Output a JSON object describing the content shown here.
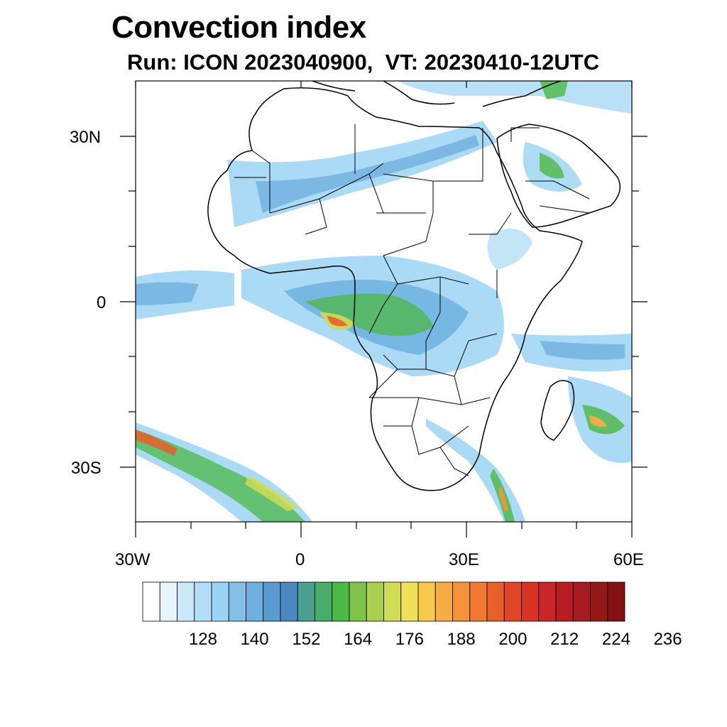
{
  "title": "Convection index",
  "subtitle": "Run: ICON 2023040900,  VT: 20230410-12UTC",
  "axes": {
    "lon_ticks": [
      "30W",
      "0",
      "30E",
      "60E"
    ],
    "lat_ticks": [
      "30N",
      "0",
      "30S"
    ],
    "lon_range": [
      -30,
      60
    ],
    "lat_range": [
      -40,
      40
    ]
  },
  "colorbar": {
    "labels": [
      "128",
      "140",
      "152",
      "164",
      "176",
      "188",
      "200",
      "212",
      "224",
      "236"
    ],
    "colors": [
      "#ffffff",
      "#e6f4fc",
      "#cbe8f8",
      "#b3def5",
      "#9bd3f3",
      "#82c0e8",
      "#6fb0e0",
      "#5a9ad1",
      "#4a88bf",
      "#4aa08e",
      "#4aac6a",
      "#4cb845",
      "#7ec24a",
      "#a8cf4e",
      "#d0dc55",
      "#f0e05a",
      "#f8c84c",
      "#f7ad43",
      "#f5923c",
      "#f07834",
      "#e85f2c",
      "#e04628",
      "#d83224",
      "#c82628",
      "#b81c24",
      "#a61a22",
      "#941818",
      "#821212"
    ]
  },
  "map": {
    "coastline_color": "#000000",
    "field_description": "convection index shading"
  }
}
